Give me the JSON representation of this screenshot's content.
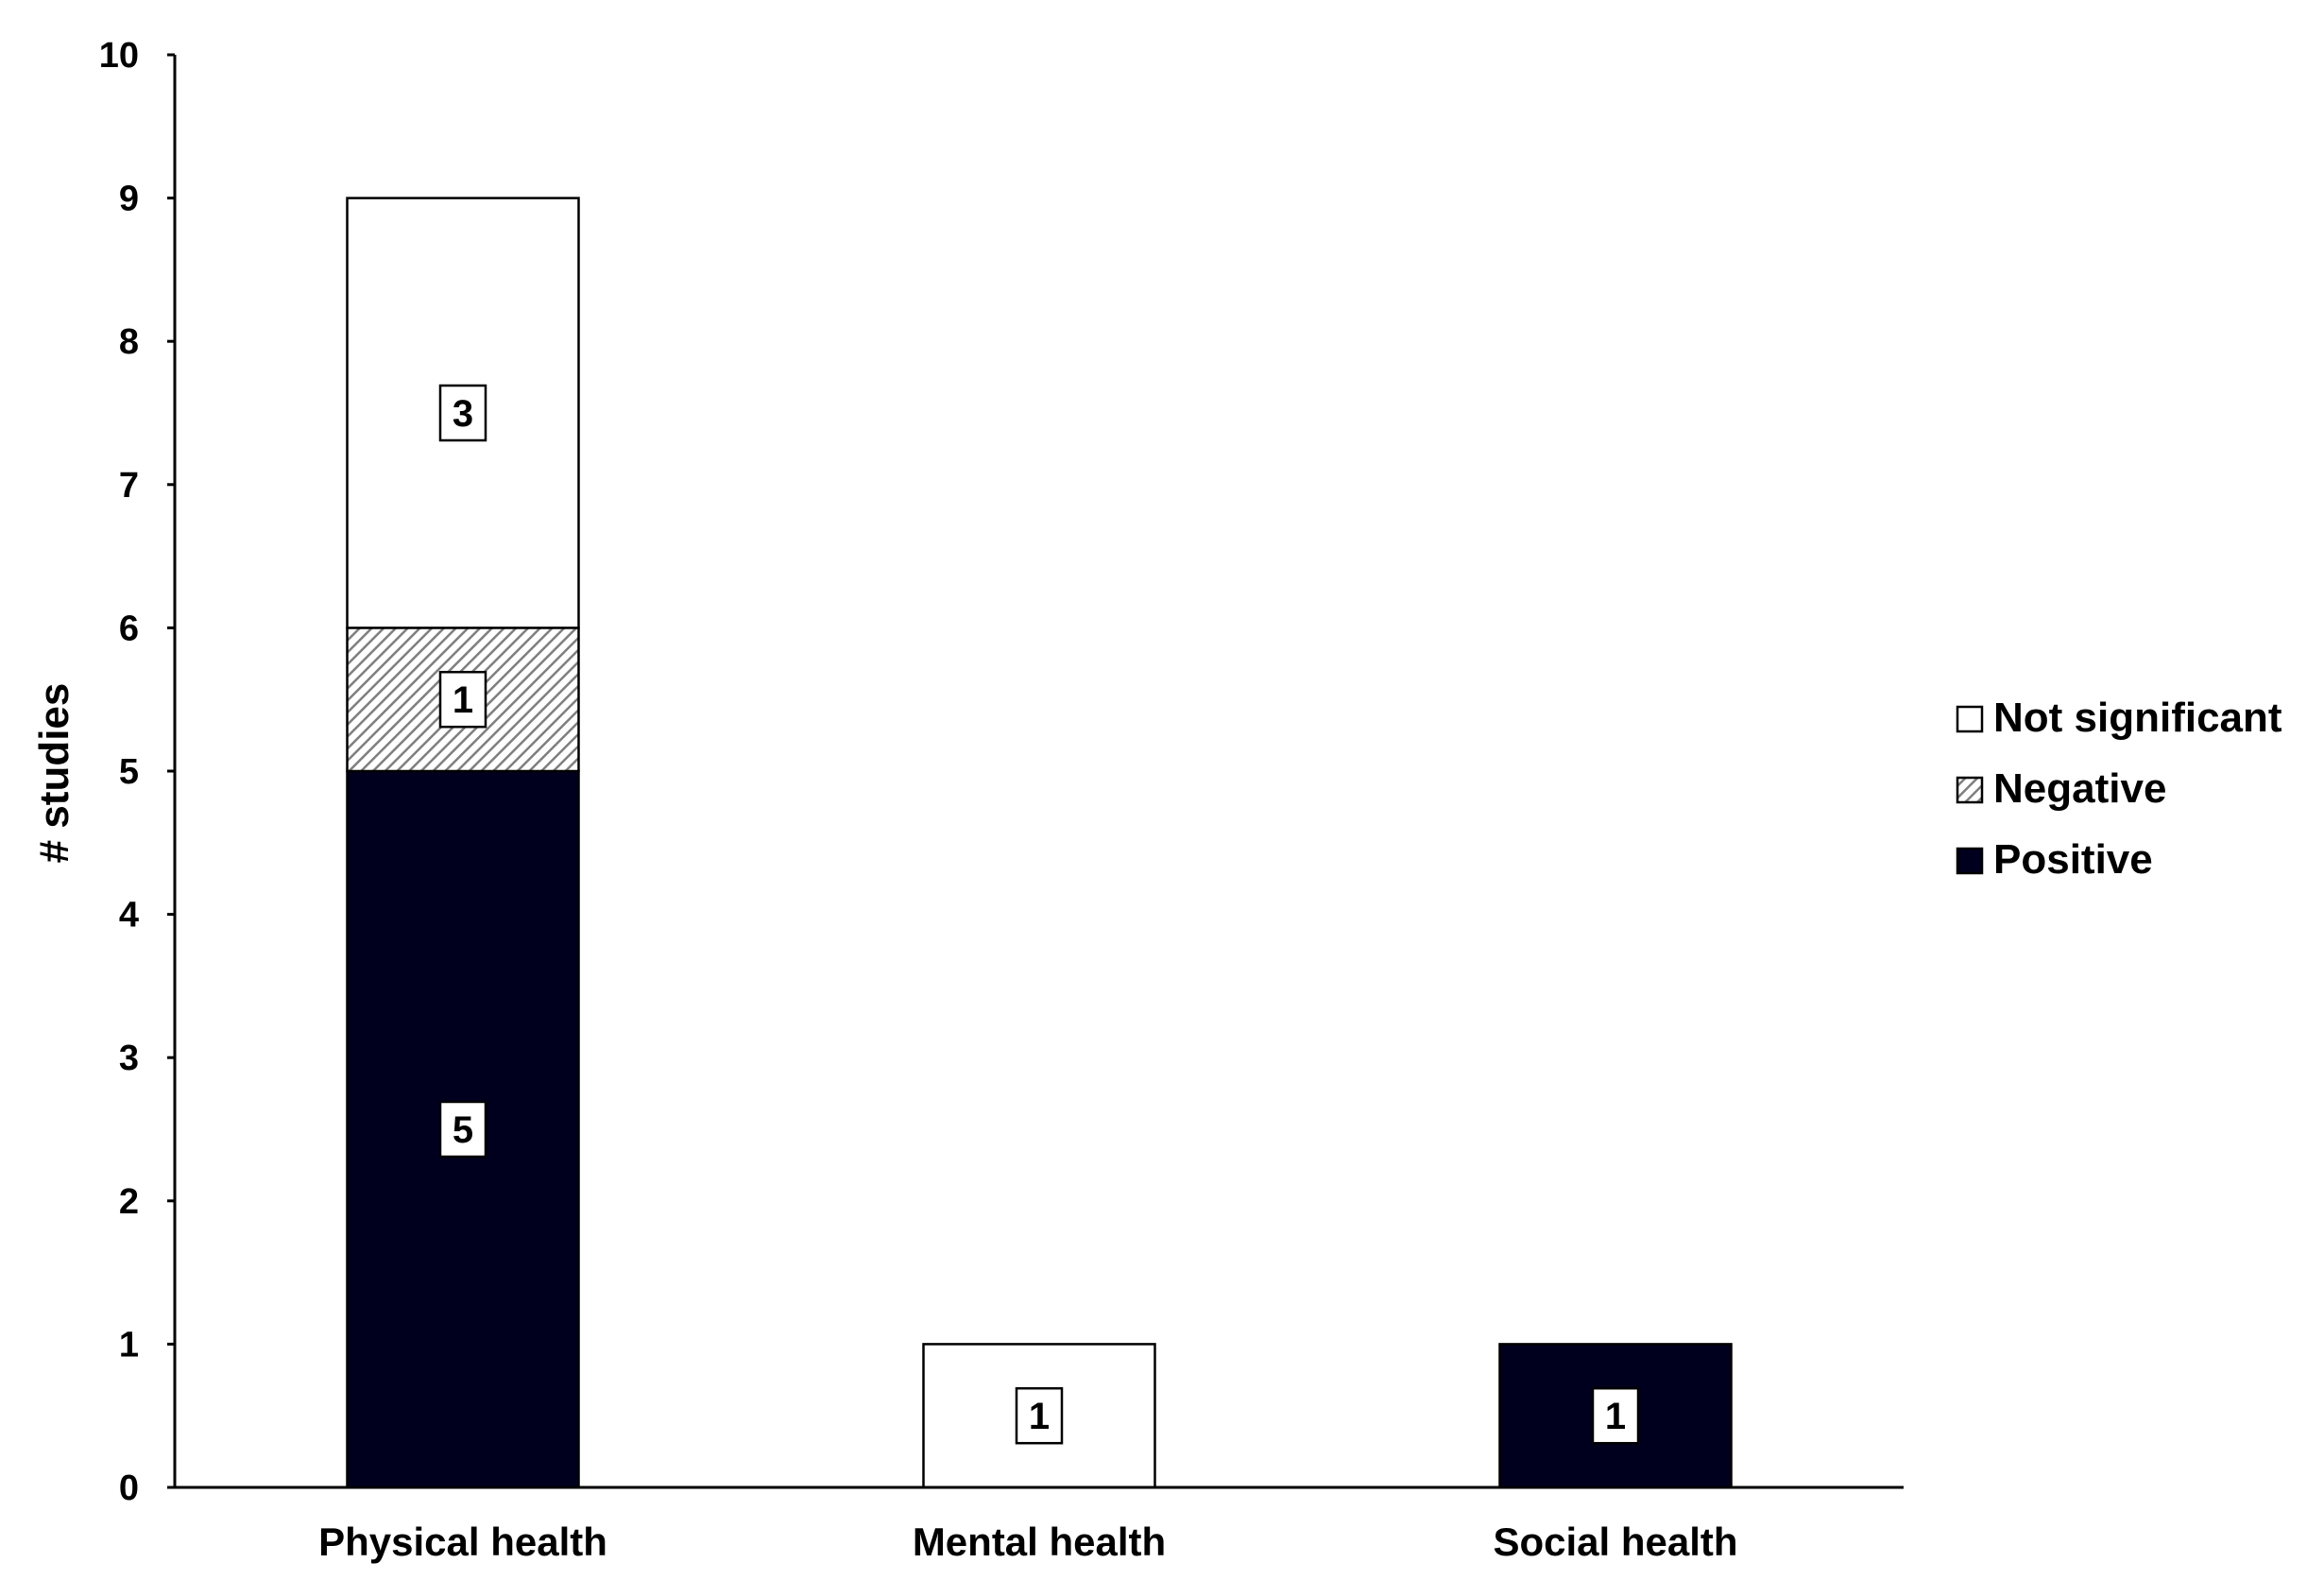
{
  "chart_data": {
    "type": "bar",
    "stacked": true,
    "categories": [
      "Physical health",
      "Mental health",
      "Social health"
    ],
    "series": [
      {
        "name": "Positive",
        "values": [
          5,
          0,
          1
        ],
        "color": "#00001e",
        "pattern": "solid"
      },
      {
        "name": "Negative",
        "values": [
          1,
          0,
          0
        ],
        "color": "#7f7f7f",
        "pattern": "diagonal-hatch"
      },
      {
        "name": "Not significant",
        "values": [
          3,
          1,
          0
        ],
        "color": "#ffffff",
        "pattern": "solid"
      }
    ],
    "title": "",
    "xlabel": "",
    "ylabel": "# studies",
    "ylim": [
      0,
      10
    ],
    "yticks": [
      0,
      1,
      2,
      3,
      4,
      5,
      6,
      7,
      8,
      9,
      10
    ],
    "grid": false,
    "legend_position": "right",
    "legend_order": [
      "Not significant",
      "Negative",
      "Positive"
    ],
    "data_labels": true
  }
}
